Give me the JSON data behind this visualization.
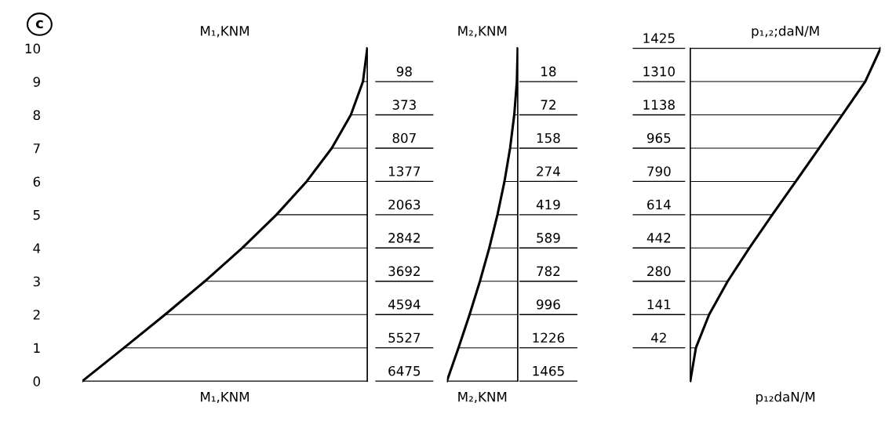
{
  "chart_data": [
    {
      "type": "bar",
      "orientation": "horizontal",
      "title": "M₁,KNM",
      "xlabel": "M₁,KNM",
      "annotations": [
        "c"
      ],
      "tick_labels": "y",
      "xlim": [
        6475,
        0
      ],
      "categories": [
        "10",
        "9",
        "8",
        "7",
        "6",
        "5",
        "4",
        "3",
        "2",
        "1",
        "0"
      ],
      "series": [
        {
          "color": "#000000",
          "values": [
            0,
            98,
            373,
            807,
            1377,
            2063,
            2842,
            3692,
            4594,
            5527,
            6475
          ],
          "value_labels": [
            null,
            "98",
            "373",
            "807",
            "1377",
            "2063",
            "2842",
            "3692",
            "4594",
            "5527",
            "6475"
          ]
        },
        {
          "type": "line",
          "color": "#000000",
          "values": [
            0,
            98,
            373,
            807,
            1377,
            2063,
            2842,
            3692,
            4594,
            5527,
            6475
          ]
        }
      ]
    },
    {
      "type": "bar",
      "orientation": "horizontal",
      "title": "M₂,KNM",
      "xlabel": "M₂,KNM",
      "tick_labels": false,
      "xlim": [
        1465,
        0
      ],
      "categories": [
        "10",
        "9",
        "8",
        "7",
        "6",
        "5",
        "4",
        "3",
        "2",
        "1",
        "0"
      ],
      "series": [
        {
          "color": "#000000",
          "values": [
            0,
            18,
            72,
            158,
            274,
            419,
            589,
            782,
            996,
            1226,
            1465
          ],
          "value_labels": [
            null,
            "18",
            "72",
            "158",
            "274",
            "419",
            "589",
            "782",
            "996",
            "1226",
            "1465"
          ]
        },
        {
          "type": "line",
          "color": "#000000",
          "values": [
            0,
            18,
            72,
            158,
            274,
            419,
            589,
            782,
            996,
            1226,
            1465
          ]
        }
      ]
    },
    {
      "type": "bar",
      "orientation": "horizontal",
      "title": "p₁,₂;daN/M",
      "xlabel": "p₁₂daN/M",
      "tick_labels": false,
      "xlim": [
        0,
        1425
      ],
      "categories": [
        "10",
        "9",
        "8",
        "7",
        "6",
        "5",
        "4",
        "3",
        "2",
        "1",
        "0"
      ],
      "series": [
        {
          "color": "#000000",
          "values": [
            1425,
            1310,
            1138,
            965,
            790,
            614,
            442,
            280,
            141,
            42,
            0
          ],
          "value_labels": [
            "1425",
            "1310",
            "1138",
            "965",
            "790",
            "614",
            "442",
            "280",
            "141",
            "42",
            null
          ]
        },
        {
          "type": "line",
          "color": "#000000",
          "values": [
            1425,
            1310,
            1138,
            965,
            790,
            614,
            442,
            280,
            141,
            42,
            0
          ]
        }
      ]
    }
  ]
}
